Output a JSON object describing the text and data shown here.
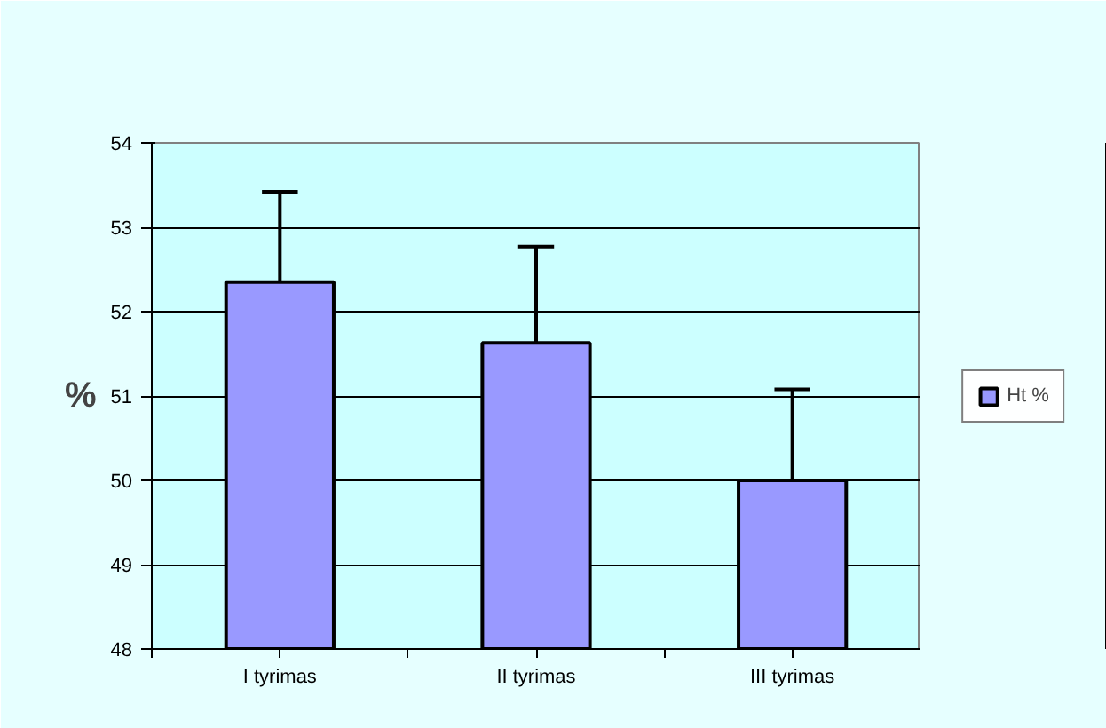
{
  "chart_data": {
    "type": "bar",
    "ylabel": "%",
    "categories": [
      "I tyrimas",
      "II tyrimas",
      "III tyrimas"
    ],
    "series": [
      {
        "name": "Ht %",
        "color": "#9999ff",
        "values": [
          52.35,
          51.63,
          50.0
        ],
        "errors": [
          [
            52.35,
            53.42
          ],
          [
            51.63,
            52.77
          ],
          [
            50.0,
            51.08
          ]
        ]
      }
    ],
    "ylim": [
      48,
      54
    ],
    "yticks": [
      48,
      49,
      50,
      51,
      52,
      53,
      54
    ],
    "grid": "y",
    "legend": "right"
  }
}
